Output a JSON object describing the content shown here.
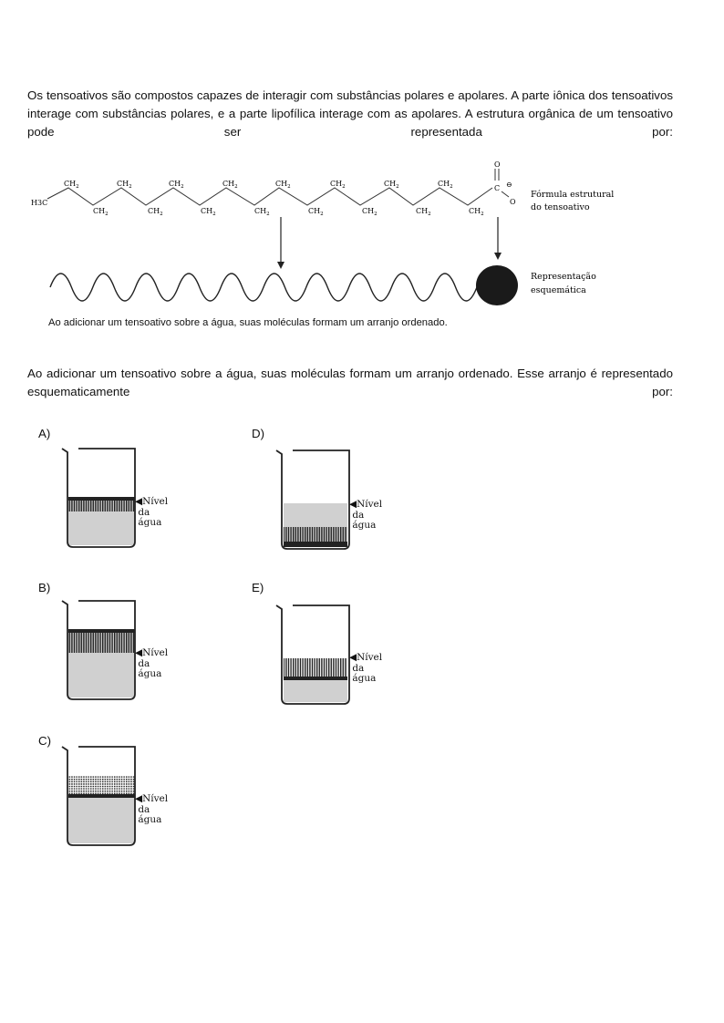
{
  "intro_text": "Os tensoativos são compostos capazes de interagir com substâncias polares e apolares. A parte iônica dos tensoativos interage com substâncias polares, e a parte lipofílica interage com as apolares. A estrutura orgânica de um tensoativo pode ser representada por:",
  "figure": {
    "start_group": "H3C",
    "chain_upper": [
      "CH2",
      "CH2",
      "CH2",
      "CH2",
      "CH2",
      "CH2",
      "CH2",
      "CH2"
    ],
    "chain_lower": [
      "CH2",
      "CH2",
      "CH2",
      "CH2",
      "CH2",
      "CH2",
      "CH2",
      "CH2"
    ],
    "carbonyl_oxygen": "O",
    "carboxyl_carbon": "C",
    "anion_oxygen": "O",
    "charge_symbol": "⊖",
    "label_formula_line1": "Fórmula estrutural",
    "label_formula_line2": "do tensoativo",
    "label_schema_line1": "Representação",
    "label_schema_line2": "esquemática",
    "caption": "Ao adicionar um tensoativo sobre a água, suas moléculas formam um arranjo ordenado."
  },
  "question_text": "Ao adicionar um tensoativo sobre a água, suas moléculas formam um arranjo ordenado. Esse arranjo é representado esquematicamente por:",
  "options": [
    {
      "letter": "A)",
      "level_label": "Nível\n da\n água"
    },
    {
      "letter": "B)",
      "level_label": "Nível\n da\n água"
    },
    {
      "letter": "C)",
      "level_label": "Nível\n da\n água"
    },
    {
      "letter": "D)",
      "level_label": "Nível\n da\n água"
    },
    {
      "letter": "E)",
      "level_label": "Nível\n da\n água"
    }
  ],
  "colors": {
    "water": "#d0d0d0",
    "molecule": "#222222"
  }
}
